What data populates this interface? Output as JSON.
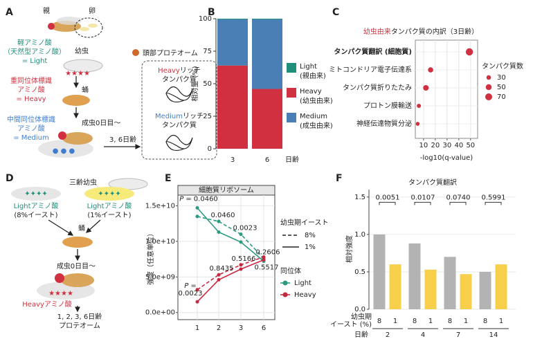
{
  "panel_labels": [
    "A",
    "B",
    "C",
    "D",
    "E",
    "F"
  ],
  "diagram_a": {
    "parent": "親",
    "egg": "卵",
    "light_aa": [
      "軽アミノ酸",
      "（天然型アミノ酸）",
      "= Light"
    ],
    "larva": "幼虫",
    "heavy_aa": [
      "重同位体標識",
      "アミノ酸",
      "= Heavy"
    ],
    "pupa": "蛹",
    "medium_aa": [
      "中間同位体標識",
      "アミノ酸",
      "= Medium"
    ],
    "adult": "成虫0日目〜",
    "age": "3, 6日齢",
    "proteome": "頭部プロテオーム",
    "heavy_rich": [
      "Heavy",
      "リッチ",
      "タンパク質"
    ],
    "medium_rich": [
      "Medium",
      "リッチ",
      "タンパク質"
    ]
  },
  "diagram_d": {
    "larva": "三齢幼虫",
    "light_8": [
      "Lightアミノ酸",
      "(8%イースト)"
    ],
    "light_1": [
      "Lightアミノ酸",
      "(1%イースト)"
    ],
    "pupa": "蛹",
    "adult": "成虫0日目〜",
    "heavy_aa": "Heavyアミノ酸",
    "ages": "1, 2, 3, 6日齢",
    "proteome": "プロテオーム"
  },
  "chart_data": [
    {
      "type": "stacked_bar",
      "categories": [
        "3",
        "6"
      ],
      "xlabel": "日齢",
      "ylabel": "相対量",
      "ylabel_unit": "(%)",
      "ylim": [
        0,
        100
      ],
      "yticks": [
        0,
        25,
        50,
        75,
        100
      ],
      "series": [
        {
          "name": "Heavy",
          "note": "(幼虫由来)",
          "color": "#d0303f",
          "values": [
            64,
            46
          ]
        },
        {
          "name": "Medium",
          "note": "(成虫由来)",
          "color": "#4a7fb5",
          "values": [
            35.5,
            53.5
          ]
        },
        {
          "name": "Light",
          "note": "(親由来)",
          "color": "#1f8f7a",
          "values": [
            0.5,
            0.5
          ]
        }
      ]
    },
    {
      "type": "dot",
      "title_highlight": "幼虫由来",
      "title": "タンパク質の内訳（3日齢）",
      "categories": [
        "タンパク質翻訳 (細胞質)",
        "ミトコンドリア電子伝達系",
        "タンパク質折りたたみ",
        "プロトン膜輸送",
        "神経伝達物質分泌"
      ],
      "values": [
        49,
        16,
        12,
        6,
        5
      ],
      "sizes": [
        75,
        40,
        45,
        25,
        22
      ],
      "color": "#d0303f",
      "xlabel": "-log10(q-value)",
      "xlim": [
        3,
        56
      ],
      "xticks": [
        10,
        20,
        30,
        40,
        50
      ],
      "grid": true,
      "size_legend": {
        "title": "タンパク質数",
        "values": [
          30,
          50,
          70
        ]
      }
    },
    {
      "type": "line",
      "title": "細胞質リボソーム",
      "categories": [
        "1",
        "2",
        "3",
        "6"
      ],
      "ylabel": "強度（任意単位）",
      "ylim": [
        -1000000000,
        16500000000
      ],
      "yticks": [
        {
          "value": 0,
          "label": "0.0e+00"
        },
        {
          "value": 5000000000,
          "label": "5.0e+09"
        },
        {
          "value": 10000000000,
          "label": "1.0e+10"
        },
        {
          "value": 15000000000,
          "label": "1.5e+10"
        }
      ],
      "grid": true,
      "legend_titles": {
        "yeast": "幼虫期イースト",
        "isotope": "同位体"
      },
      "series": [
        {
          "name": "Light",
          "yeast": "8%",
          "linestyle": "dashed",
          "color": "#2a9a80",
          "values": [
            13500000000,
            12800000000,
            11000000000,
            7600000000
          ]
        },
        {
          "name": "Light",
          "yeast": "1%",
          "linestyle": "solid",
          "color": "#2a9a80",
          "values": [
            14700000000,
            11300000000,
            9900000000,
            7200000000
          ]
        },
        {
          "name": "Heavy",
          "yeast": "8%",
          "linestyle": "dashed",
          "color": "#c8283f",
          "values": [
            3200000000,
            5300000000,
            6700000000,
            7800000000
          ]
        },
        {
          "name": "Heavy",
          "yeast": "1%",
          "linestyle": "solid",
          "color": "#c8283f",
          "values": [
            1500000000,
            4600000000,
            6100000000,
            7400000000
          ]
        }
      ],
      "p_prefix": "P =",
      "p_values": [
        [
          "0.0460",
          "0.0460",
          "0.0023",
          "0.2606"
        ],
        [
          "0.0023",
          "0.8435",
          "0.5166",
          "0.5517"
        ]
      ]
    },
    {
      "type": "grouped_bar",
      "title": "タンパク質翻訳",
      "ylabel": "相対強度",
      "categories": [
        "2",
        "4",
        "7",
        "14"
      ],
      "xlabel": "日齢",
      "group_label": [
        "幼虫期",
        "イースト (%)"
      ],
      "ylim": [
        0,
        1.6
      ],
      "yticks": [
        {
          "value": 0,
          "label": "0.0"
        },
        0.5,
        {
          "value": 1,
          "label": "1.0"
        },
        1.5
      ],
      "grid": true,
      "series": [
        {
          "name": "8",
          "color": "#b3b3b3",
          "values": [
            1.0,
            0.88,
            0.7,
            0.5
          ]
        },
        {
          "name": "1",
          "color": "#f7cf4a",
          "values": [
            0.6,
            0.53,
            0.47,
            0.6
          ]
        }
      ],
      "p_values": [
        "0.0051",
        "0.0107",
        "0.0740",
        "0.5991"
      ]
    }
  ]
}
